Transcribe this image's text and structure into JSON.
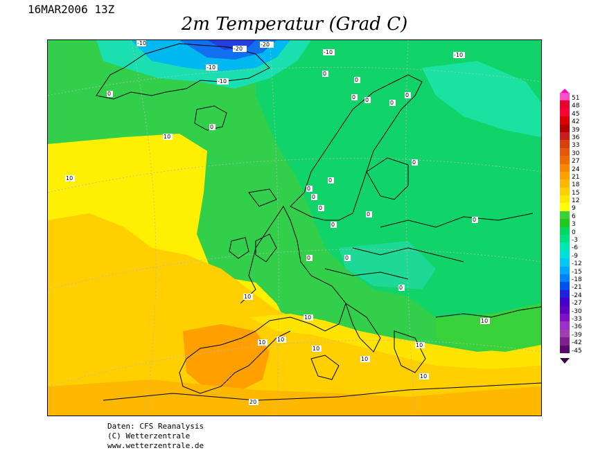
{
  "header": {
    "datetime": "16MAR2006 13Z",
    "title": "2m Temperatur (Grad C)"
  },
  "legend": {
    "units": "Grad C",
    "levels": [
      {
        "label": "51",
        "color": "#ff50c8"
      },
      {
        "label": "48",
        "color": "#e8002e"
      },
      {
        "label": "45",
        "color": "#ff0030"
      },
      {
        "label": "42",
        "color": "#d80000"
      },
      {
        "label": "39",
        "color": "#b40000"
      },
      {
        "label": "36",
        "color": "#c81e1e"
      },
      {
        "label": "33",
        "color": "#d84010"
      },
      {
        "label": "30",
        "color": "#e85808"
      },
      {
        "label": "27",
        "color": "#f06c00"
      },
      {
        "label": "24",
        "color": "#f88800"
      },
      {
        "label": "21",
        "color": "#ffa000"
      },
      {
        "label": "18",
        "color": "#ffb800"
      },
      {
        "label": "15",
        "color": "#ffd000"
      },
      {
        "label": "12",
        "color": "#ffe600"
      },
      {
        "label": "9",
        "color": "#ffff00"
      },
      {
        "label": "6",
        "color": "#3ad23a"
      },
      {
        "label": "3",
        "color": "#20c820"
      },
      {
        "label": "0",
        "color": "#00d860"
      },
      {
        "label": "-3",
        "color": "#00e080"
      },
      {
        "label": "-6",
        "color": "#00e8b0"
      },
      {
        "label": "-9",
        "color": "#00e0d8"
      },
      {
        "label": "-12",
        "color": "#00c8f0"
      },
      {
        "label": "-15",
        "color": "#00a8ff"
      },
      {
        "label": "-18",
        "color": "#0080ff"
      },
      {
        "label": "-21",
        "color": "#0050f0"
      },
      {
        "label": "-24",
        "color": "#2020e0"
      },
      {
        "label": "-27",
        "color": "#4000d0"
      },
      {
        "label": "-30",
        "color": "#6000c0"
      },
      {
        "label": "-33",
        "color": "#8010c8"
      },
      {
        "label": "-36",
        "color": "#9c30c8"
      },
      {
        "label": "-39",
        "color": "#a040b0"
      },
      {
        "label": "-42",
        "color": "#80208c"
      },
      {
        "label": "-45",
        "color": "#5a0a6a"
      }
    ]
  },
  "map": {
    "contour_labels": [
      "-10",
      "-20",
      "-20",
      "-10",
      "-10",
      "-10",
      "-10",
      "0",
      "0",
      "0",
      "0",
      "10",
      "10",
      "0",
      "0",
      "0",
      "0",
      "0",
      "0",
      "0",
      "0",
      "0",
      "0",
      "0",
      "0",
      "0",
      "0",
      "10",
      "10",
      "0",
      "10",
      "10",
      "10",
      "10",
      "10",
      "10",
      "10",
      "20"
    ],
    "colors": {
      "warm_yellow": "#ffff00",
      "orange_light": "#ffd000",
      "orange": "#ffa000",
      "green": "#3ad23a",
      "green_cool": "#00d860",
      "teal": "#00e8b0",
      "blue": "#0080ff",
      "deep_blue": "#0050f0"
    }
  },
  "credits": {
    "line1": "Daten: CFS Reanalysis",
    "line2": "(C) Wetterzentrale",
    "line3": "www.wetterzentrale.de"
  }
}
